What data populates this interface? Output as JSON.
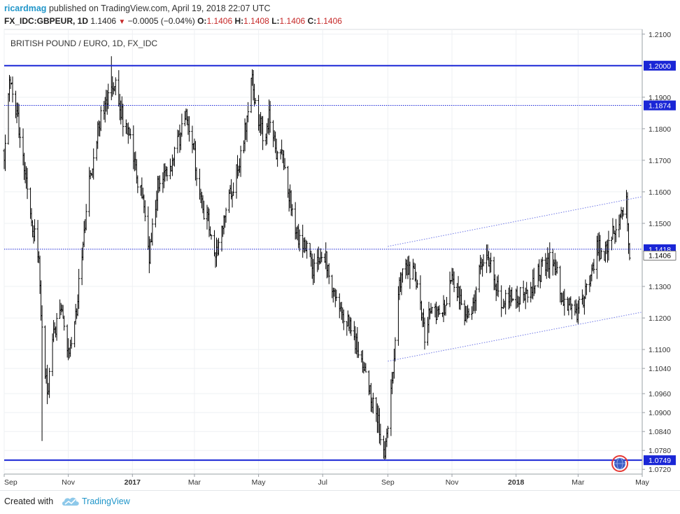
{
  "header": {
    "author": "ricardmag",
    "published": "published on TradingView.com, April 19, 2018 22:07 UTC"
  },
  "ohlc": {
    "symbol": "FX_IDC:GBPEUR, 1D",
    "last": "1.1406",
    "change": "−0.0005 (−0.04%)",
    "o_label": "O:",
    "o": "1.1406",
    "h_label": "H:",
    "h": "1.1408",
    "l_label": "L:",
    "l": "1.1406",
    "c_label": "C:",
    "c": "1.1406",
    "up_color": "#000000",
    "down_color": "#c62828"
  },
  "footer": {
    "created_with": "Created with",
    "brand": "TradingView",
    "logo_icon": "tradingview-cloud-icon"
  },
  "chart_data": {
    "type": "bar",
    "title": "BRITISH POUND / EURO, 1D, FX_IDC",
    "xlabel": "",
    "ylabel": "",
    "ylim": [
      1.0705,
      1.2115
    ],
    "x_start": "2016-09-01",
    "x_end": "2018-05-01",
    "x_ticks": [
      {
        "label": "Sep",
        "date": "2016-09-01"
      },
      {
        "label": "Nov",
        "date": "2016-11-01"
      },
      {
        "label": "2017",
        "date": "2017-01-01",
        "bold": true
      },
      {
        "label": "Mar",
        "date": "2017-03-01"
      },
      {
        "label": "May",
        "date": "2017-05-01"
      },
      {
        "label": "Jul",
        "date": "2017-07-01"
      },
      {
        "label": "Sep",
        "date": "2017-09-01"
      },
      {
        "label": "Nov",
        "date": "2017-11-01"
      },
      {
        "label": "2018",
        "date": "2018-01-01",
        "bold": true
      },
      {
        "label": "Mar",
        "date": "2018-03-01"
      },
      {
        "label": "May",
        "date": "2018-05-01"
      }
    ],
    "y_ticks": [
      "1.2100",
      "1.1900",
      "1.1800",
      "1.1700",
      "1.1600",
      "1.1500",
      "1.1300",
      "1.1200",
      "1.1100",
      "1.1040",
      "1.0960",
      "1.0900",
      "1.0840",
      "1.0780",
      "1.0720"
    ],
    "price_path": [
      [
        "2016-09-01",
        1.173
      ],
      [
        "2016-09-06",
        1.196
      ],
      [
        "2016-09-13",
        1.185
      ],
      [
        "2016-09-20",
        1.168
      ],
      [
        "2016-09-27",
        1.152
      ],
      [
        "2016-10-04",
        1.138
      ],
      [
        "2016-10-07",
        1.115
      ],
      [
        "2016-10-12",
        1.096
      ],
      [
        "2016-10-18",
        1.115
      ],
      [
        "2016-10-25",
        1.122
      ],
      [
        "2016-11-01",
        1.108
      ],
      [
        "2016-11-08",
        1.12
      ],
      [
        "2016-11-15",
        1.145
      ],
      [
        "2016-11-22",
        1.165
      ],
      [
        "2016-11-29",
        1.18
      ],
      [
        "2016-12-06",
        1.187
      ],
      [
        "2016-12-12",
        1.195
      ],
      [
        "2016-12-18",
        1.193
      ],
      [
        "2016-12-24",
        1.18
      ],
      [
        "2016-12-30",
        1.176
      ],
      [
        "2017-01-06",
        1.162
      ],
      [
        "2017-01-12",
        1.156
      ],
      [
        "2017-01-17",
        1.14
      ],
      [
        "2017-01-24",
        1.16
      ],
      [
        "2017-01-31",
        1.168
      ],
      [
        "2017-02-07",
        1.168
      ],
      [
        "2017-02-14",
        1.176
      ],
      [
        "2017-02-21",
        1.185
      ],
      [
        "2017-02-28",
        1.175
      ],
      [
        "2017-03-07",
        1.156
      ],
      [
        "2017-03-14",
        1.15
      ],
      [
        "2017-03-20",
        1.14
      ],
      [
        "2017-03-27",
        1.148
      ],
      [
        "2017-04-03",
        1.158
      ],
      [
        "2017-04-10",
        1.166
      ],
      [
        "2017-04-17",
        1.176
      ],
      [
        "2017-04-24",
        1.197
      ],
      [
        "2017-05-01",
        1.182
      ],
      [
        "2017-05-08",
        1.177
      ],
      [
        "2017-05-11",
        1.185
      ],
      [
        "2017-05-18",
        1.172
      ],
      [
        "2017-05-25",
        1.17
      ],
      [
        "2017-06-01",
        1.156
      ],
      [
        "2017-06-08",
        1.144
      ],
      [
        "2017-06-15",
        1.142
      ],
      [
        "2017-06-22",
        1.136
      ],
      [
        "2017-06-29",
        1.14
      ],
      [
        "2017-07-04",
        1.138
      ],
      [
        "2017-07-11",
        1.13
      ],
      [
        "2017-07-18",
        1.123
      ],
      [
        "2017-07-25",
        1.118
      ],
      [
        "2017-08-01",
        1.112
      ],
      [
        "2017-08-08",
        1.105
      ],
      [
        "2017-08-15",
        1.097
      ],
      [
        "2017-08-22",
        1.088
      ],
      [
        "2017-08-29",
        1.079
      ],
      [
        "2017-09-01",
        1.086
      ],
      [
        "2017-09-05",
        1.098
      ],
      [
        "2017-09-08",
        1.115
      ],
      [
        "2017-09-12",
        1.13
      ],
      [
        "2017-09-18",
        1.136
      ],
      [
        "2017-09-22",
        1.135
      ],
      [
        "2017-09-29",
        1.132
      ],
      [
        "2017-10-06",
        1.115
      ],
      [
        "2017-10-12",
        1.122
      ],
      [
        "2017-10-19",
        1.12
      ],
      [
        "2017-10-26",
        1.124
      ],
      [
        "2017-11-01",
        1.134
      ],
      [
        "2017-11-07",
        1.128
      ],
      [
        "2017-11-14",
        1.12
      ],
      [
        "2017-11-21",
        1.124
      ],
      [
        "2017-11-28",
        1.136
      ],
      [
        "2017-12-04",
        1.138
      ],
      [
        "2017-12-11",
        1.133
      ],
      [
        "2017-12-18",
        1.126
      ],
      [
        "2017-12-25",
        1.127
      ],
      [
        "2018-01-02",
        1.126
      ],
      [
        "2018-01-09",
        1.128
      ],
      [
        "2018-01-16",
        1.13
      ],
      [
        "2018-01-23",
        1.134
      ],
      [
        "2018-01-30",
        1.138
      ],
      [
        "2018-02-06",
        1.138
      ],
      [
        "2018-02-13",
        1.128
      ],
      [
        "2018-02-20",
        1.124
      ],
      [
        "2018-02-27",
        1.121
      ],
      [
        "2018-03-05",
        1.125
      ],
      [
        "2018-03-12",
        1.133
      ],
      [
        "2018-03-19",
        1.142
      ],
      [
        "2018-03-26",
        1.141
      ],
      [
        "2018-04-02",
        1.146
      ],
      [
        "2018-04-09",
        1.151
      ],
      [
        "2018-04-16",
        1.157
      ],
      [
        "2018-04-19",
        1.1406
      ]
    ],
    "spikes": [
      {
        "date": "2016-10-07",
        "low": 1.081
      },
      {
        "date": "2016-12-12",
        "high": 1.203
      },
      {
        "date": "2017-08-29",
        "low": 1.0749
      }
    ],
    "horizontal_levels": [
      {
        "value": 1.2,
        "label": "1.2000",
        "style": "solid"
      },
      {
        "value": 1.1874,
        "label": "1.1874",
        "style": "dotted"
      },
      {
        "value": 1.1418,
        "label": "1.1418",
        "style": "dotted"
      },
      {
        "value": 1.0749,
        "label": "1.0749",
        "style": "solid"
      }
    ],
    "last_price": "1.1406",
    "channel": {
      "upper": [
        [
          "2017-09-01",
          1.1427
        ],
        [
          "2018-04-30",
          1.1584
        ]
      ],
      "lower": [
        [
          "2017-09-01",
          1.1063
        ],
        [
          "2018-04-30",
          1.1218
        ]
      ]
    },
    "colors": {
      "bars": "#000000",
      "levels": "#1a26d6",
      "channel": "#6f78e6",
      "label_bg": "#1a26d6",
      "grid": "#eef0f3"
    },
    "grid": true,
    "event_icon": "globe-event-icon"
  }
}
